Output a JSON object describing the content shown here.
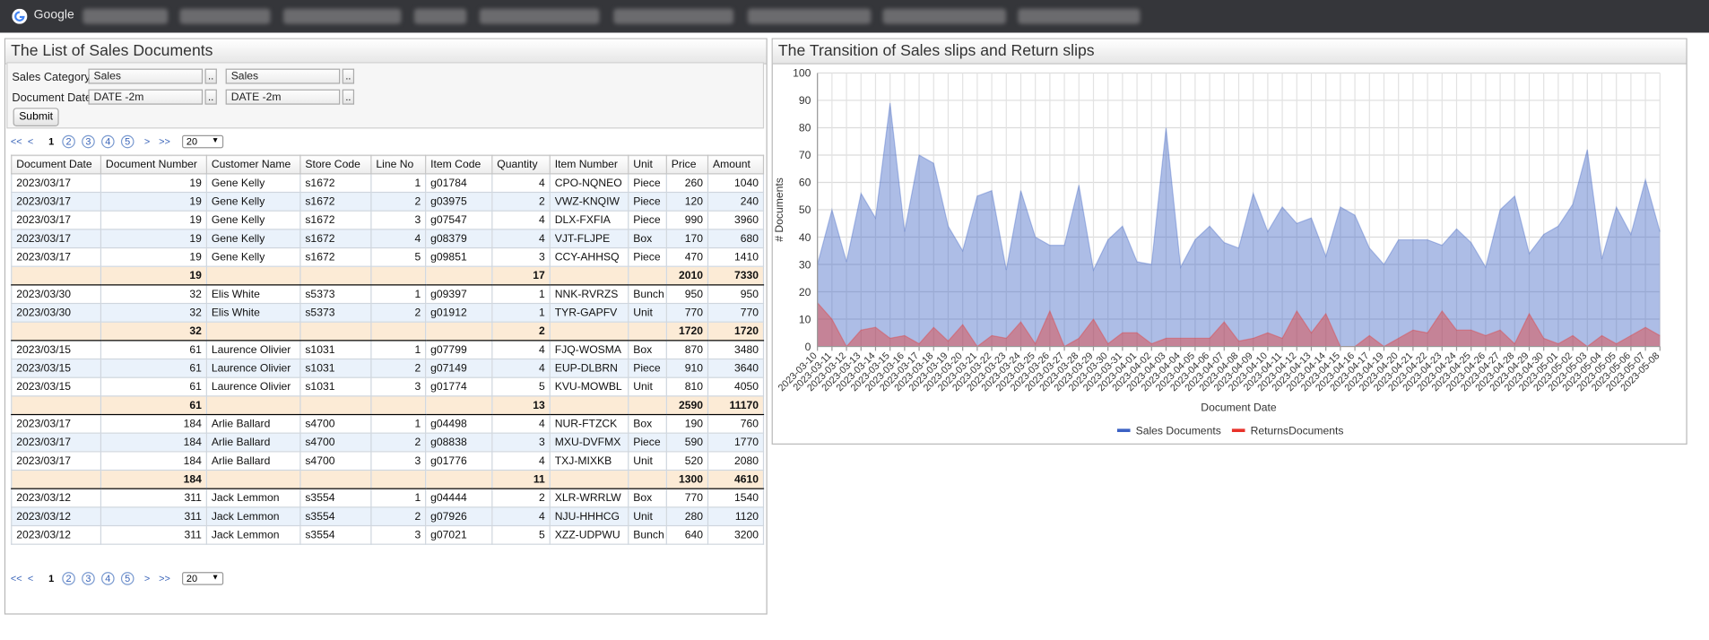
{
  "browser": {
    "bookmark": "Google"
  },
  "list_panel": {
    "title": "The List of Sales Documents",
    "form": {
      "sales_category": {
        "label": "Sales Category:",
        "from": "Sales",
        "to": "Sales"
      },
      "document_date": {
        "label": "Document Date:",
        "from": "DATE -2m",
        "to": "DATE -2m"
      },
      "lookup_button": "..",
      "submit": "Submit"
    },
    "pager": {
      "first": "<<",
      "prev": "<",
      "pages": [
        1,
        2,
        3,
        4,
        5
      ],
      "next": ">",
      "last": ">>",
      "page_size": 20
    },
    "table": {
      "columns": [
        "Document Date",
        "Document Number",
        "Customer Name",
        "Store Code",
        "Line No",
        "Item Code",
        "Quantity",
        "Item Number",
        "Unit",
        "Price",
        "Amount"
      ],
      "groups": [
        {
          "rows": [
            [
              "2023/03/17",
              19,
              "Gene Kelly",
              "s1672",
              1,
              "g01784",
              4,
              "CPO-NQNEO",
              "Piece",
              260,
              1040
            ],
            [
              "2023/03/17",
              19,
              "Gene Kelly",
              "s1672",
              2,
              "g03975",
              2,
              "VWZ-KNQIW",
              "Piece",
              120,
              240
            ],
            [
              "2023/03/17",
              19,
              "Gene Kelly",
              "s1672",
              3,
              "g07547",
              4,
              "DLX-FXFIA",
              "Piece",
              990,
              3960
            ],
            [
              "2023/03/17",
              19,
              "Gene Kelly",
              "s1672",
              4,
              "g08379",
              4,
              "VJT-FLJPE",
              "Box",
              170,
              680
            ],
            [
              "2023/03/17",
              19,
              "Gene Kelly",
              "s1672",
              5,
              "g09851",
              3,
              "CCY-AHHSQ",
              "Piece",
              470,
              1410
            ]
          ],
          "subtotal": {
            "document_number": 19,
            "quantity": 17,
            "price": 2010,
            "amount": 7330
          }
        },
        {
          "rows": [
            [
              "2023/03/30",
              32,
              "Elis White",
              "s5373",
              1,
              "g09397",
              1,
              "NNK-RVRZS",
              "Bunch",
              950,
              950
            ],
            [
              "2023/03/30",
              32,
              "Elis White",
              "s5373",
              2,
              "g01912",
              1,
              "TYR-GAPFV",
              "Unit",
              770,
              770
            ]
          ],
          "subtotal": {
            "document_number": 32,
            "quantity": 2,
            "price": 1720,
            "amount": 1720
          }
        },
        {
          "rows": [
            [
              "2023/03/15",
              61,
              "Laurence Olivier",
              "s1031",
              1,
              "g07799",
              4,
              "FJQ-WOSMA",
              "Box",
              870,
              3480
            ],
            [
              "2023/03/15",
              61,
              "Laurence Olivier",
              "s1031",
              2,
              "g07149",
              4,
              "EUP-DLBRN",
              "Piece",
              910,
              3640
            ],
            [
              "2023/03/15",
              61,
              "Laurence Olivier",
              "s1031",
              3,
              "g01774",
              5,
              "KVU-MOWBL",
              "Unit",
              810,
              4050
            ]
          ],
          "subtotal": {
            "document_number": 61,
            "quantity": 13,
            "price": 2590,
            "amount": 11170
          }
        },
        {
          "rows": [
            [
              "2023/03/17",
              184,
              "Arlie Ballard",
              "s4700",
              1,
              "g04498",
              4,
              "NUR-FTZCK",
              "Box",
              190,
              760
            ],
            [
              "2023/03/17",
              184,
              "Arlie Ballard",
              "s4700",
              2,
              "g08838",
              3,
              "MXU-DVFMX",
              "Piece",
              590,
              1770
            ],
            [
              "2023/03/17",
              184,
              "Arlie Ballard",
              "s4700",
              3,
              "g01776",
              4,
              "TXJ-MIXKB",
              "Unit",
              520,
              2080
            ]
          ],
          "subtotal": {
            "document_number": 184,
            "quantity": 11,
            "price": 1300,
            "amount": 4610
          }
        },
        {
          "rows": [
            [
              "2023/03/12",
              311,
              "Jack Lemmon",
              "s3554",
              1,
              "g04444",
              2,
              "XLR-WRRLW",
              "Box",
              770,
              1540
            ],
            [
              "2023/03/12",
              311,
              "Jack Lemmon",
              "s3554",
              2,
              "g07926",
              4,
              "NJU-HHHCG",
              "Unit",
              280,
              1120
            ],
            [
              "2023/03/12",
              311,
              "Jack Lemmon",
              "s3554",
              3,
              "g07021",
              5,
              "XZZ-UDPWU",
              "Bunch",
              640,
              3200
            ]
          ]
        }
      ]
    }
  },
  "chart_data": {
    "type": "area",
    "title": "The Transition of Sales slips and Return slips",
    "x_label": "Document Date",
    "y_label": "# Documents",
    "categories": [
      "2023-03-10",
      "2023-03-11",
      "2023-03-12",
      "2023-03-13",
      "2023-03-14",
      "2023-03-15",
      "2023-03-16",
      "2023-03-17",
      "2023-03-18",
      "2023-03-19",
      "2023-03-20",
      "2023-03-21",
      "2023-03-22",
      "2023-03-23",
      "2023-03-24",
      "2023-03-25",
      "2023-03-26",
      "2023-03-27",
      "2023-03-28",
      "2023-03-29",
      "2023-03-30",
      "2023-03-31",
      "2023-04-01",
      "2023-04-02",
      "2023-04-03",
      "2023-04-04",
      "2023-04-05",
      "2023-04-06",
      "2023-04-07",
      "2023-04-08",
      "2023-04-09",
      "2023-04-10",
      "2023-04-11",
      "2023-04-12",
      "2023-04-13",
      "2023-04-14",
      "2023-04-15",
      "2023-04-16",
      "2023-04-17",
      "2023-04-19",
      "2023-04-20",
      "2023-04-21",
      "2023-04-22",
      "2023-04-23",
      "2023-04-24",
      "2023-04-25",
      "2023-04-26",
      "2023-04-27",
      "2023-04-28",
      "2023-04-29",
      "2023-04-30",
      "2023-05-01",
      "2023-05-02",
      "2023-05-03",
      "2023-05-04",
      "2023-05-05",
      "2023-05-06",
      "2023-05-07",
      "2023-05-08"
    ],
    "series": [
      {
        "name": "Sales Documents",
        "color": "#3c62c4",
        "values": [
          30,
          50,
          31,
          56,
          47,
          89,
          42,
          70,
          67,
          44,
          35,
          55,
          57,
          28,
          57,
          40,
          37,
          37,
          59,
          28,
          39,
          44,
          31,
          30,
          80,
          29,
          39,
          44,
          38,
          36,
          56,
          42,
          51,
          45,
          47,
          33,
          51,
          48,
          36,
          30,
          39,
          39,
          39,
          37,
          43,
          38,
          29,
          50,
          55,
          34,
          41,
          44,
          52,
          72,
          32,
          51,
          41,
          61,
          42
        ]
      },
      {
        "name": "ReturnsDocuments",
        "color": "#e8322a",
        "values": [
          16,
          10,
          0,
          6,
          7,
          3,
          4,
          1,
          7,
          2,
          8,
          0,
          4,
          3,
          9,
          1,
          13,
          0,
          3,
          10,
          1,
          5,
          5,
          1,
          3,
          3,
          3,
          3,
          9,
          2,
          3,
          5,
          3,
          13,
          5,
          12,
          0,
          0,
          4,
          0,
          3,
          6,
          5,
          13,
          6,
          6,
          4,
          6,
          1,
          12,
          3,
          1,
          4,
          0,
          4,
          1,
          4,
          7,
          4
        ]
      }
    ],
    "ylim": [
      0,
      100
    ],
    "yticks": [
      0,
      10,
      20,
      30,
      40,
      50,
      60,
      70,
      80,
      90,
      100
    ],
    "grid": true,
    "legend": "bottom"
  }
}
